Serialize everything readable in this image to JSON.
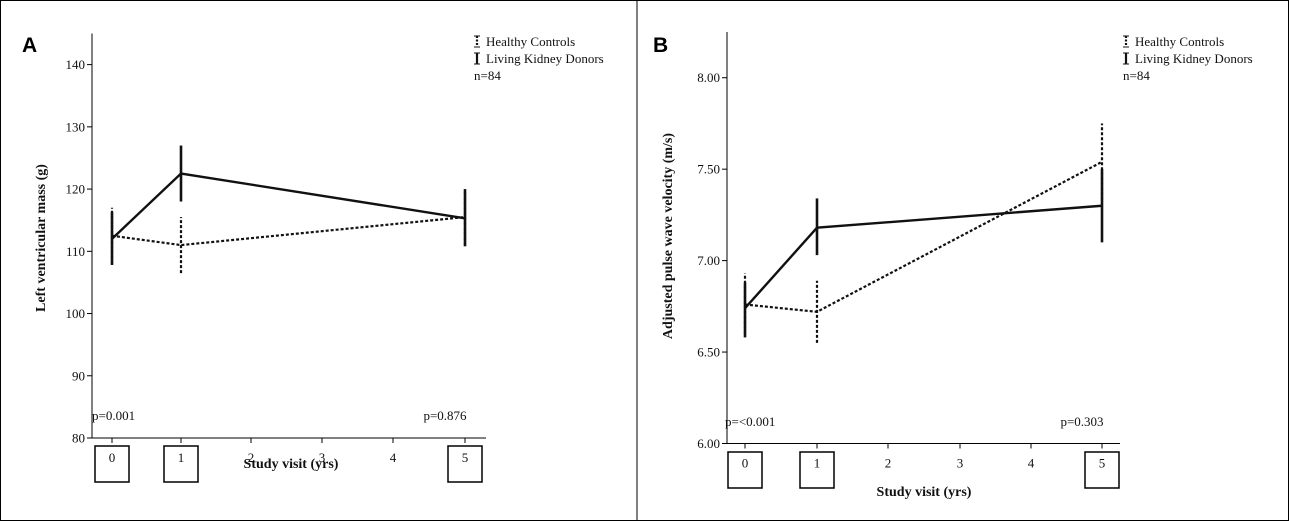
{
  "colors": {
    "line": "#111111",
    "frame": "#000000",
    "background": "#ffffff"
  },
  "chart_data": [
    {
      "type": "line",
      "panel_label": "A",
      "ylabel": "Left ventricular mass (g)",
      "xlabel": "Study visit (yrs)",
      "ylim": [
        80,
        145
      ],
      "xlim": [
        0,
        5
      ],
      "x_ticks": [
        "0",
        "1",
        "2",
        "3",
        "4",
        "5"
      ],
      "boxed_ticks": [
        "0",
        "1",
        "5"
      ],
      "y_ticks": [
        "80",
        "90",
        "100",
        "110",
        "120",
        "130",
        "140"
      ],
      "series": [
        {
          "name": "Healthy Controls",
          "style": "dotted",
          "x": [
            0,
            1,
            5
          ],
          "y": [
            112.5,
            111.0,
            115.5
          ],
          "err_low": [
            108.0,
            106.5,
            111.0
          ],
          "err_high": [
            117.0,
            115.5,
            119.5
          ]
        },
        {
          "name": "Living Kidney Donors",
          "style": "solid",
          "x": [
            0,
            1,
            5
          ],
          "y": [
            112.0,
            122.5,
            115.3
          ],
          "err_low": [
            107.8,
            118.0,
            110.8
          ],
          "err_high": [
            116.3,
            127.0,
            120.0
          ]
        }
      ],
      "legend": {
        "placement": "top-right",
        "entries": [
          "Healthy Controls",
          "Living Kidney Donors"
        ],
        "note": "n=84"
      },
      "annotations": [
        {
          "text": "p=0.001",
          "x": 0
        },
        {
          "text": "p=0.876",
          "x": 5
        }
      ],
      "grid": false
    },
    {
      "type": "line",
      "panel_label": "B",
      "ylabel": "Adjusted pulse wave velocity (m/s)",
      "xlabel": "Study visit (yrs)",
      "ylim": [
        6.0,
        8.25
      ],
      "xlim": [
        0,
        5
      ],
      "x_ticks": [
        "0",
        "1",
        "2",
        "3",
        "4",
        "5"
      ],
      "boxed_ticks": [
        "0",
        "1",
        "5"
      ],
      "y_ticks": [
        "6.00",
        "6.50",
        "7.00",
        "7.50",
        "8.00"
      ],
      "series": [
        {
          "name": "Healthy Controls",
          "style": "dotted",
          "x": [
            0,
            1,
            5
          ],
          "y": [
            6.76,
            6.72,
            7.54
          ],
          "err_low": [
            6.6,
            6.55,
            7.33
          ],
          "err_high": [
            6.93,
            6.89,
            7.75
          ]
        },
        {
          "name": "Living Kidney Donors",
          "style": "solid",
          "x": [
            0,
            1,
            5
          ],
          "y": [
            6.74,
            7.18,
            7.3
          ],
          "err_low": [
            6.58,
            7.03,
            7.1
          ],
          "err_high": [
            6.88,
            7.34,
            7.5
          ]
        }
      ],
      "legend": {
        "placement": "top-right",
        "entries": [
          "Healthy Controls",
          "Living Kidney Donors"
        ],
        "note": "n=84"
      },
      "annotations": [
        {
          "text": "p=<0.001",
          "x": 0
        },
        {
          "text": "p=0.303",
          "x": 5
        }
      ],
      "grid": false
    }
  ]
}
